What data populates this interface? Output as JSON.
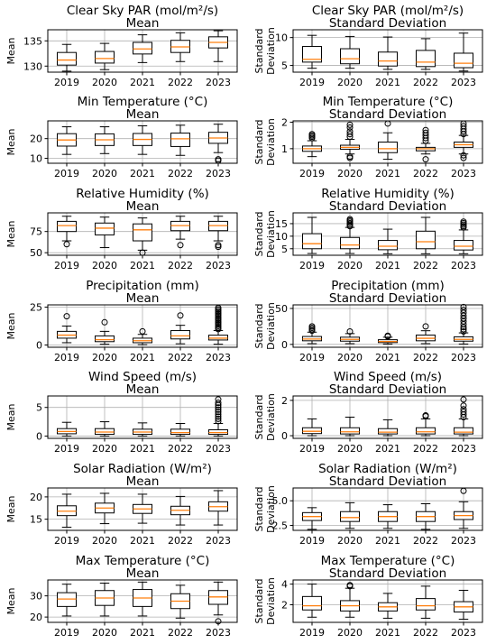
{
  "figure": {
    "years": [
      "2019",
      "2020",
      "2021",
      "2022",
      "2023"
    ],
    "colors": {
      "box": "#000000",
      "median": "#ff7f0e",
      "grid": "#b0b0b0",
      "flier": "#000000"
    }
  },
  "chart_data": [
    {
      "type": "box",
      "title": "Clear Sky PAR (mol/m²/s)",
      "subtitle": "Mean",
      "ylabel": "Mean",
      "ylim": [
        128.8,
        137.2
      ],
      "yticks": [
        130,
        135
      ],
      "grid": true,
      "categories": [
        "2019",
        "2020",
        "2021",
        "2022",
        "2023"
      ],
      "boxes": [
        {
          "whislo": 129.0,
          "q1": 130.2,
          "med": 131.2,
          "q3": 132.7,
          "whishi": 134.3,
          "fliers": []
        },
        {
          "whislo": 129.3,
          "q1": 130.6,
          "med": 131.5,
          "q3": 132.9,
          "whishi": 134.5,
          "fliers": []
        },
        {
          "whislo": 130.7,
          "q1": 132.4,
          "med": 133.4,
          "q3": 134.7,
          "whishi": 136.2,
          "fliers": []
        },
        {
          "whislo": 130.9,
          "q1": 132.7,
          "med": 133.8,
          "q3": 135.1,
          "whishi": 136.6,
          "fliers": []
        },
        {
          "whislo": 130.9,
          "q1": 133.6,
          "med": 134.7,
          "q3": 135.8,
          "whishi": 137.0,
          "fliers": []
        }
      ]
    },
    {
      "type": "box",
      "title": "Clear Sky PAR (mol/m²/s)",
      "subtitle": "Standard Deviation",
      "ylabel": "Standard Deviation",
      "ylim": [
        3.8,
        11.4
      ],
      "yticks": [
        5,
        10
      ],
      "grid": true,
      "categories": [
        "2019",
        "2020",
        "2021",
        "2022",
        "2023"
      ],
      "boxes": [
        {
          "whislo": 4.5,
          "q1": 5.6,
          "med": 6.1,
          "q3": 8.4,
          "whishi": 10.4,
          "fliers": []
        },
        {
          "whislo": 4.5,
          "q1": 5.3,
          "med": 6.2,
          "q3": 8.0,
          "whishi": 10.2,
          "fliers": []
        },
        {
          "whislo": 4.3,
          "q1": 4.9,
          "med": 5.8,
          "q3": 7.4,
          "whishi": 10.1,
          "fliers": []
        },
        {
          "whislo": 4.3,
          "q1": 4.8,
          "med": 5.6,
          "q3": 7.7,
          "whishi": 9.8,
          "fliers": []
        },
        {
          "whislo": 4.0,
          "q1": 4.6,
          "med": 5.4,
          "q3": 7.2,
          "whishi": 10.8,
          "fliers": []
        }
      ]
    },
    {
      "type": "box",
      "title": "Min Temperature (°C)",
      "subtitle": "Mean",
      "ylabel": "Mean",
      "ylim": [
        7.5,
        29
      ],
      "yticks": [
        10,
        20
      ],
      "grid": true,
      "categories": [
        "2019",
        "2020",
        "2021",
        "2022",
        "2023"
      ],
      "boxes": [
        {
          "whislo": 12.0,
          "q1": 16.2,
          "med": 19.3,
          "q3": 22.5,
          "whishi": 26.0,
          "fliers": []
        },
        {
          "whislo": 12.4,
          "q1": 16.5,
          "med": 19.4,
          "q3": 22.4,
          "whishi": 26.0,
          "fliers": []
        },
        {
          "whislo": 12.0,
          "q1": 16.5,
          "med": 19.6,
          "q3": 22.6,
          "whishi": 26.5,
          "fliers": []
        },
        {
          "whislo": 11.5,
          "q1": 16.0,
          "med": 19.9,
          "q3": 22.8,
          "whishi": 26.8,
          "fliers": []
        },
        {
          "whislo": 12.9,
          "q1": 17.6,
          "med": 20.3,
          "q3": 23.2,
          "whishi": 27.3,
          "fliers": [
            9.5,
            8.8
          ]
        }
      ]
    },
    {
      "type": "box",
      "title": "Min Temperature (°C)",
      "subtitle": "Standard Deviation",
      "ylabel": "Standard Deviation",
      "ylim": [
        0.45,
        2.05
      ],
      "yticks": [
        1,
        2
      ],
      "grid": true,
      "categories": [
        "2019",
        "2020",
        "2021",
        "2022",
        "2023"
      ],
      "boxes": [
        {
          "whislo": 0.7,
          "q1": 0.9,
          "med": 1.0,
          "q3": 1.1,
          "whishi": 1.3,
          "fliers": [
            1.4,
            1.45,
            1.5,
            1.55
          ]
        },
        {
          "whislo": 0.8,
          "q1": 0.98,
          "med": 1.05,
          "q3": 1.13,
          "whishi": 1.35,
          "fliers": [
            0.65,
            0.7,
            1.45,
            1.55,
            1.65,
            1.8,
            1.9
          ]
        },
        {
          "whislo": 0.6,
          "q1": 0.85,
          "med": 1.0,
          "q3": 1.25,
          "whishi": 1.6,
          "fliers": [
            1.95
          ]
        },
        {
          "whislo": 0.8,
          "q1": 0.92,
          "med": 1.0,
          "q3": 1.05,
          "whishi": 1.2,
          "fliers": [
            0.6,
            1.3,
            1.4,
            1.5,
            1.6,
            1.7
          ]
        },
        {
          "whislo": 0.8,
          "q1": 1.05,
          "med": 1.15,
          "q3": 1.25,
          "whishi": 1.5,
          "fliers": [
            0.65,
            0.75,
            1.55,
            1.65,
            1.75,
            1.85,
            1.95
          ]
        }
      ]
    },
    {
      "type": "box",
      "title": "Relative Humidity (%)",
      "subtitle": "Mean",
      "ylabel": "Mean",
      "ylim": [
        47,
        97
      ],
      "yticks": [
        50,
        75
      ],
      "grid": true,
      "categories": [
        "2019",
        "2020",
        "2021",
        "2022",
        "2023"
      ],
      "boxes": [
        {
          "whislo": 64,
          "q1": 75,
          "med": 82,
          "q3": 87,
          "whishi": 93,
          "fliers": [
            60
          ]
        },
        {
          "whislo": 56,
          "q1": 71,
          "med": 79,
          "q3": 85,
          "whishi": 92,
          "fliers": []
        },
        {
          "whislo": 53,
          "q1": 64,
          "med": 77,
          "q3": 84,
          "whishi": 91,
          "fliers": [
            50
          ]
        },
        {
          "whislo": 66,
          "q1": 76,
          "med": 82,
          "q3": 87,
          "whishi": 93,
          "fliers": [
            59
          ]
        },
        {
          "whislo": 64,
          "q1": 76,
          "med": 82,
          "q3": 87,
          "whishi": 93,
          "fliers": [
            59,
            57
          ]
        }
      ]
    },
    {
      "type": "box",
      "title": "Relative Humidity (%)",
      "subtitle": "Standard Deviation",
      "ylabel": "Standard Deviation",
      "ylim": [
        2.4,
        19.3
      ],
      "yticks": [
        5,
        10,
        15
      ],
      "grid": true,
      "categories": [
        "2019",
        "2020",
        "2021",
        "2022",
        "2023"
      ],
      "boxes": [
        {
          "whislo": 3.1,
          "q1": 5.0,
          "med": 7.0,
          "q3": 11.0,
          "whishi": 17.5,
          "fliers": []
        },
        {
          "whislo": 3.1,
          "q1": 5.0,
          "med": 6.5,
          "q3": 9.5,
          "whishi": 13.5,
          "fliers": [
            14.0,
            14.6,
            15.2,
            15.8,
            16.3,
            16.8
          ]
        },
        {
          "whislo": 3.0,
          "q1": 4.6,
          "med": 6.0,
          "q3": 8.3,
          "whishi": 12.8,
          "fliers": []
        },
        {
          "whislo": 3.0,
          "q1": 5.0,
          "med": 7.8,
          "q3": 12.0,
          "whishi": 17.5,
          "fliers": []
        },
        {
          "whislo": 3.0,
          "q1": 4.5,
          "med": 6.0,
          "q3": 8.3,
          "whishi": 12.5,
          "fliers": [
            13.5,
            14.0,
            14.6,
            15.2,
            15.8
          ]
        }
      ]
    },
    {
      "type": "box",
      "title": "Precipitation (mm)",
      "subtitle": "Mean",
      "ylabel": "Mean",
      "ylim": [
        -1.5,
        26.5
      ],
      "yticks": [
        0,
        25
      ],
      "grid": true,
      "categories": [
        "2019",
        "2020",
        "2021",
        "2022",
        "2023"
      ],
      "boxes": [
        {
          "whislo": 1.5,
          "q1": 4.5,
          "med": 6.5,
          "q3": 9.0,
          "whishi": 12.5,
          "fliers": [
            19.0
          ]
        },
        {
          "whislo": 0.5,
          "q1": 2.2,
          "med": 3.5,
          "q3": 6.0,
          "whishi": 9.0,
          "fliers": [
            15.0
          ]
        },
        {
          "whislo": 0.2,
          "q1": 1.5,
          "med": 2.8,
          "q3": 4.5,
          "whishi": 7.0,
          "fliers": [
            9.0
          ]
        },
        {
          "whislo": 0.8,
          "q1": 4.0,
          "med": 6.0,
          "q3": 9.5,
          "whishi": 13.0,
          "fliers": [
            19.5
          ]
        },
        {
          "whislo": 0.5,
          "q1": 3.3,
          "med": 4.5,
          "q3": 6.5,
          "whishi": 9.5,
          "fliers": [
            10.5,
            11.5,
            12.5,
            13.5,
            14.5,
            15.5,
            16.5,
            17.5,
            18.5,
            19.5,
            20.5,
            21.5,
            22.5,
            23.5,
            24.5
          ]
        }
      ]
    },
    {
      "type": "box",
      "title": "Precipitation (mm)",
      "subtitle": "Standard Deviation",
      "ylabel": "Standard Deviation",
      "ylim": [
        -4,
        55
      ],
      "yticks": [
        0,
        50
      ],
      "grid": true,
      "categories": [
        "2019",
        "2020",
        "2021",
        "2022",
        "2023"
      ],
      "boxes": [
        {
          "whislo": 1.0,
          "q1": 5.0,
          "med": 7.5,
          "q3": 11.0,
          "whishi": 17.0,
          "fliers": [
            19.0,
            21.0,
            23.0,
            25.0
          ]
        },
        {
          "whislo": 1.0,
          "q1": 4.5,
          "med": 7.0,
          "q3": 10.0,
          "whishi": 15.0,
          "fliers": [
            18.0
          ]
        },
        {
          "whislo": 0.5,
          "q1": 2.5,
          "med": 4.0,
          "q3": 6.5,
          "whishi": 10.0,
          "fliers": [
            11.0,
            12.0
          ]
        },
        {
          "whislo": 1.0,
          "q1": 5.0,
          "med": 8.5,
          "q3": 13.0,
          "whishi": 19.0,
          "fliers": [
            25.0
          ]
        },
        {
          "whislo": 0.5,
          "q1": 4.5,
          "med": 7.0,
          "q3": 10.5,
          "whishi": 16.0,
          "fliers": [
            18.0,
            21.0,
            24.0,
            28.0,
            32.0,
            36.0,
            40.0,
            44.0,
            48.0,
            52.0
          ]
        }
      ]
    },
    {
      "type": "box",
      "title": "Wind Speed (m/s)",
      "subtitle": "Mean",
      "ylabel": "Mean",
      "ylim": [
        -0.4,
        7.0
      ],
      "yticks": [
        0,
        5
      ],
      "grid": true,
      "categories": [
        "2019",
        "2020",
        "2021",
        "2022",
        "2023"
      ],
      "boxes": [
        {
          "whislo": 0.0,
          "q1": 0.4,
          "med": 0.8,
          "q3": 1.3,
          "whishi": 2.4,
          "fliers": []
        },
        {
          "whislo": 0.0,
          "q1": 0.3,
          "med": 0.7,
          "q3": 1.3,
          "whishi": 2.5,
          "fliers": []
        },
        {
          "whislo": 0.0,
          "q1": 0.3,
          "med": 0.7,
          "q3": 1.2,
          "whishi": 2.3,
          "fliers": []
        },
        {
          "whislo": 0.0,
          "q1": 0.3,
          "med": 0.6,
          "q3": 1.2,
          "whishi": 2.2,
          "fliers": []
        },
        {
          "whislo": 0.0,
          "q1": 0.3,
          "med": 0.6,
          "q3": 1.1,
          "whishi": 2.2,
          "fliers": [
            2.6,
            3.0,
            3.4,
            3.8,
            4.2,
            4.6,
            5.0,
            5.4,
            5.8,
            6.4
          ]
        }
      ]
    },
    {
      "type": "box",
      "title": "Wind Speed (m/s)",
      "subtitle": "Standard Deviation",
      "ylabel": "Standard Deviation",
      "ylim": [
        -0.15,
        2.25
      ],
      "yticks": [
        0,
        2
      ],
      "grid": true,
      "categories": [
        "2019",
        "2020",
        "2021",
        "2022",
        "2023"
      ],
      "boxes": [
        {
          "whislo": 0.0,
          "q1": 0.12,
          "med": 0.25,
          "q3": 0.45,
          "whishi": 0.95,
          "fliers": []
        },
        {
          "whislo": 0.0,
          "q1": 0.1,
          "med": 0.22,
          "q3": 0.45,
          "whishi": 1.05,
          "fliers": []
        },
        {
          "whislo": 0.0,
          "q1": 0.1,
          "med": 0.2,
          "q3": 0.4,
          "whishi": 0.9,
          "fliers": []
        },
        {
          "whislo": 0.0,
          "q1": 0.1,
          "med": 0.22,
          "q3": 0.45,
          "whishi": 0.95,
          "fliers": [
            1.1,
            1.15
          ]
        },
        {
          "whislo": 0.0,
          "q1": 0.1,
          "med": 0.2,
          "q3": 0.45,
          "whishi": 0.95,
          "fliers": [
            1.05,
            1.2,
            1.35,
            1.5,
            1.7,
            2.05
          ]
        }
      ]
    },
    {
      "type": "box",
      "title": "Solar Radiation (W/m²)",
      "subtitle": "Mean",
      "ylabel": "Mean",
      "ylim": [
        12.5,
        22.0
      ],
      "yticks": [
        15,
        20
      ],
      "grid": true,
      "categories": [
        "2019",
        "2020",
        "2021",
        "2022",
        "2023"
      ],
      "boxes": [
        {
          "whislo": 13.2,
          "q1": 15.8,
          "med": 16.8,
          "q3": 18.0,
          "whishi": 20.6,
          "fliers": []
        },
        {
          "whislo": 14.0,
          "q1": 16.4,
          "med": 17.5,
          "q3": 18.6,
          "whishi": 20.8,
          "fliers": []
        },
        {
          "whislo": 14.1,
          "q1": 16.3,
          "med": 17.3,
          "q3": 18.3,
          "whishi": 20.6,
          "fliers": []
        },
        {
          "whislo": 13.7,
          "q1": 16.0,
          "med": 17.0,
          "q3": 17.9,
          "whishi": 20.1,
          "fliers": []
        },
        {
          "whislo": 13.7,
          "q1": 16.8,
          "med": 17.8,
          "q3": 18.9,
          "whishi": 21.4,
          "fliers": []
        }
      ]
    },
    {
      "type": "box",
      "title": "Solar Radiation (W/m²)",
      "subtitle": "Standard Deviation",
      "ylabel": "Standard Deviation",
      "ylim": [
        2.0,
        6.3
      ],
      "yticks": [
        2.5,
        5.0
      ],
      "grid": true,
      "categories": [
        "2019",
        "2020",
        "2021",
        "2022",
        "2023"
      ],
      "boxes": [
        {
          "whislo": 2.1,
          "q1": 3.0,
          "med": 3.4,
          "q3": 3.8,
          "whishi": 4.3,
          "fliers": []
        },
        {
          "whislo": 2.2,
          "q1": 2.9,
          "med": 3.3,
          "q3": 3.9,
          "whishi": 4.8,
          "fliers": []
        },
        {
          "whislo": 2.2,
          "q1": 2.9,
          "med": 3.4,
          "q3": 3.9,
          "whishi": 4.6,
          "fliers": []
        },
        {
          "whislo": 2.1,
          "q1": 2.9,
          "med": 3.4,
          "q3": 3.9,
          "whishi": 4.7,
          "fliers": []
        },
        {
          "whislo": 2.2,
          "q1": 3.1,
          "med": 3.5,
          "q3": 3.9,
          "whishi": 4.9,
          "fliers": [
            6.0
          ]
        }
      ]
    },
    {
      "type": "box",
      "title": "Max Temperature (°C)",
      "subtitle": "Mean",
      "ylabel": "Mean",
      "ylim": [
        17.5,
        37.5
      ],
      "yticks": [
        20,
        30
      ],
      "grid": true,
      "categories": [
        "2019",
        "2020",
        "2021",
        "2022",
        "2023"
      ],
      "boxes": [
        {
          "whislo": 20.5,
          "q1": 25.0,
          "med": 28.5,
          "q3": 31.5,
          "whishi": 35.5,
          "fliers": []
        },
        {
          "whislo": 20.5,
          "q1": 25.5,
          "med": 29.0,
          "q3": 32.5,
          "whishi": 36.0,
          "fliers": []
        },
        {
          "whislo": 20.5,
          "q1": 25.0,
          "med": 29.0,
          "q3": 33.0,
          "whishi": 36.5,
          "fliers": []
        },
        {
          "whislo": 19.5,
          "q1": 24.0,
          "med": 27.5,
          "q3": 31.0,
          "whishi": 35.0,
          "fliers": []
        },
        {
          "whislo": 21.0,
          "q1": 26.0,
          "med": 29.5,
          "q3": 32.5,
          "whishi": 36.5,
          "fliers": [
            18.0
          ]
        }
      ]
    },
    {
      "type": "box",
      "title": "Max Temperature (°C)",
      "subtitle": "Standard Deviation",
      "ylabel": "Standard Deviation",
      "ylim": [
        0.3,
        4.4
      ],
      "yticks": [
        2,
        4
      ],
      "grid": true,
      "categories": [
        "2019",
        "2020",
        "2021",
        "2022",
        "2023"
      ],
      "boxes": [
        {
          "whislo": 0.8,
          "q1": 1.5,
          "med": 1.9,
          "q3": 2.8,
          "whishi": 4.0,
          "fliers": []
        },
        {
          "whislo": 0.8,
          "q1": 1.4,
          "med": 1.9,
          "q3": 2.4,
          "whishi": 3.6,
          "fliers": [
            3.8,
            3.9
          ]
        },
        {
          "whislo": 0.7,
          "q1": 1.4,
          "med": 1.8,
          "q3": 2.2,
          "whishi": 3.1,
          "fliers": []
        },
        {
          "whislo": 0.7,
          "q1": 1.5,
          "med": 1.9,
          "q3": 2.6,
          "whishi": 3.8,
          "fliers": []
        },
        {
          "whislo": 0.6,
          "q1": 1.3,
          "med": 1.8,
          "q3": 2.3,
          "whishi": 3.4,
          "fliers": []
        }
      ]
    }
  ]
}
